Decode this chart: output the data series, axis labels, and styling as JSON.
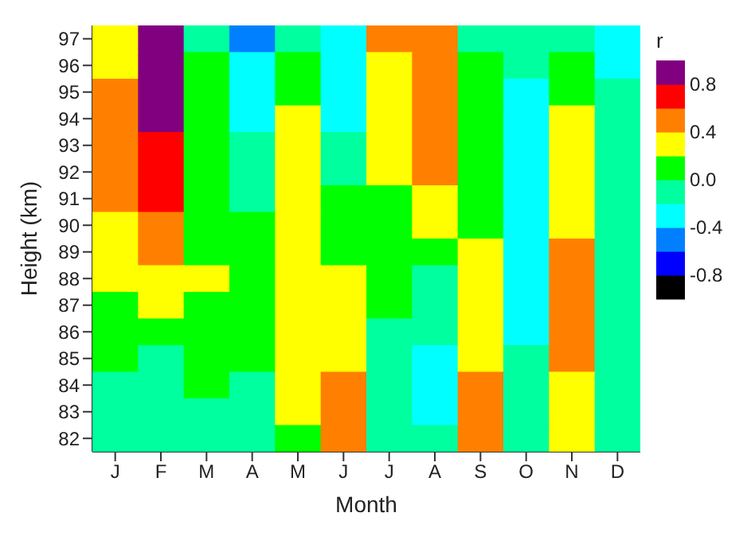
{
  "chart_data": {
    "type": "heatmap",
    "xlabel": "Month",
    "ylabel": "Height (km)",
    "clabel": "r",
    "categories": [
      "J",
      "F",
      "M",
      "A",
      "M",
      "J",
      "J",
      "A",
      "S",
      "O",
      "N",
      "D"
    ],
    "y_categories": [
      "97",
      "96",
      "95",
      "94",
      "93",
      "92",
      "91",
      "90",
      "89",
      "88",
      "87",
      "86",
      "85",
      "84",
      "83",
      "82"
    ],
    "cells": [
      [
        0.3,
        0.9,
        -0.1,
        -0.5,
        -0.1,
        -0.3,
        0.5,
        0.5,
        -0.1,
        -0.1,
        -0.1,
        -0.3
      ],
      [
        0.3,
        0.9,
        0.1,
        -0.3,
        0.1,
        -0.3,
        0.3,
        0.5,
        0.1,
        -0.1,
        0.1,
        -0.3
      ],
      [
        0.5,
        0.9,
        0.1,
        -0.3,
        0.1,
        -0.3,
        0.3,
        0.5,
        0.1,
        -0.3,
        0.1,
        -0.1
      ],
      [
        0.5,
        0.9,
        0.1,
        -0.3,
        0.3,
        -0.3,
        0.3,
        0.5,
        0.1,
        -0.3,
        0.3,
        -0.1
      ],
      [
        0.5,
        0.7,
        0.1,
        -0.1,
        0.3,
        -0.1,
        0.3,
        0.5,
        0.1,
        -0.3,
        0.3,
        -0.1
      ],
      [
        0.5,
        0.7,
        0.1,
        -0.1,
        0.3,
        -0.1,
        0.3,
        0.5,
        0.1,
        -0.3,
        0.3,
        -0.1
      ],
      [
        0.5,
        0.7,
        0.1,
        -0.1,
        0.3,
        0.1,
        0.1,
        0.3,
        0.1,
        -0.3,
        0.3,
        -0.1
      ],
      [
        0.3,
        0.5,
        0.1,
        0.1,
        0.3,
        0.1,
        0.1,
        0.3,
        0.1,
        -0.3,
        0.3,
        -0.1
      ],
      [
        0.3,
        0.5,
        0.1,
        0.1,
        0.3,
        0.1,
        0.1,
        0.1,
        0.3,
        -0.3,
        0.5,
        -0.1
      ],
      [
        0.3,
        0.3,
        0.3,
        0.1,
        0.3,
        0.3,
        0.1,
        -0.1,
        0.3,
        -0.3,
        0.5,
        -0.1
      ],
      [
        0.1,
        0.3,
        0.1,
        0.1,
        0.3,
        0.3,
        0.1,
        -0.1,
        0.3,
        -0.3,
        0.5,
        -0.1
      ],
      [
        0.1,
        0.1,
        0.1,
        0.1,
        0.3,
        0.3,
        -0.1,
        -0.1,
        0.3,
        -0.3,
        0.5,
        -0.1
      ],
      [
        0.1,
        -0.1,
        0.1,
        0.1,
        0.3,
        0.3,
        -0.1,
        -0.3,
        0.3,
        -0.1,
        0.5,
        -0.1
      ],
      [
        -0.1,
        -0.1,
        0.1,
        -0.1,
        0.3,
        0.5,
        -0.1,
        -0.3,
        0.5,
        -0.1,
        0.3,
        -0.1
      ],
      [
        -0.1,
        -0.1,
        -0.1,
        -0.1,
        0.3,
        0.5,
        -0.1,
        -0.3,
        0.5,
        -0.1,
        0.3,
        -0.1
      ],
      [
        -0.1,
        -0.1,
        -0.1,
        -0.1,
        0.1,
        0.5,
        -0.1,
        -0.1,
        0.5,
        -0.1,
        0.3,
        -0.1
      ]
    ],
    "clim": [
      -1,
      1
    ],
    "cticks": [
      -0.8,
      -0.4,
      {
        "value": 0,
        "label": "0.0"
      },
      0.4,
      0.8
    ],
    "colors": [
      "#000000",
      "#0000ff",
      "#0080ff",
      "#00ffff",
      "#00ff9f",
      "#00ff00",
      "#ffff00",
      "#ff8000",
      "#ff0000",
      "#800080"
    ]
  }
}
